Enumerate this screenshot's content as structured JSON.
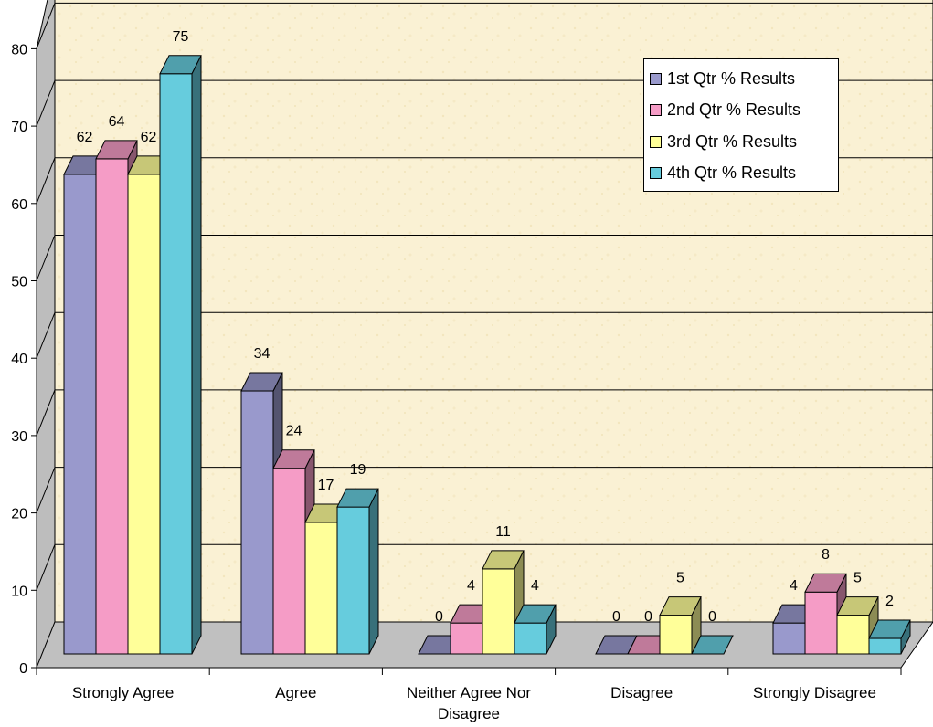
{
  "chart_data": {
    "type": "bar",
    "title": "",
    "xlabel": "",
    "ylabel": "",
    "ylim": [
      0,
      80
    ],
    "yticks": [
      0,
      10,
      20,
      30,
      40,
      50,
      60,
      70,
      80
    ],
    "grid": true,
    "legend_position": "top-right",
    "categories": [
      [
        "Strongly Agree"
      ],
      [
        "Agree"
      ],
      [
        "Neither Agree Nor",
        "Disagree"
      ],
      [
        "Disagree"
      ],
      [
        "Strongly Disagree"
      ]
    ],
    "series": [
      {
        "name": "1st Qtr % Results",
        "values": [
          62,
          34,
          0,
          0,
          4
        ],
        "color": "#9999CC"
      },
      {
        "name": "2nd Qtr % Results",
        "values": [
          64,
          24,
          4,
          0,
          8
        ],
        "color": "#F59CC6"
      },
      {
        "name": "3rd Qtr % Results",
        "values": [
          62,
          17,
          11,
          5,
          5
        ],
        "color": "#FFFF99"
      },
      {
        "name": "4th Qtr % Results",
        "values": [
          75,
          19,
          4,
          0,
          2
        ],
        "color": "#66CCDD"
      }
    ]
  }
}
